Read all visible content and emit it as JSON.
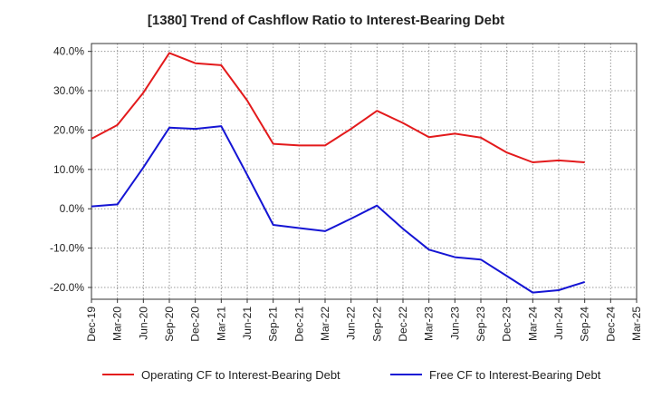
{
  "chart_data": {
    "type": "line",
    "title": "[1380]  Trend of Cashflow Ratio to Interest-Bearing Debt",
    "xlabel": "",
    "ylabel": "",
    "x": [
      "Dec-19",
      "Mar-20",
      "Jun-20",
      "Sep-20",
      "Dec-20",
      "Mar-21",
      "Jun-21",
      "Sep-21",
      "Dec-21",
      "Mar-22",
      "Jun-22",
      "Sep-22",
      "Dec-22",
      "Mar-23",
      "Jun-23",
      "Sep-23",
      "Dec-23",
      "Mar-24",
      "Jun-24",
      "Sep-24",
      "Dec-24",
      "Mar-25"
    ],
    "ylim": [
      -23,
      42
    ],
    "yticks": [
      40,
      30,
      20,
      10,
      0,
      -10,
      -20
    ],
    "ytick_labels": [
      "40.0%",
      "30.0%",
      "20.0%",
      "10.0%",
      "0.0%",
      "-10.0%",
      "-20.0%"
    ],
    "grid": true,
    "legend_position": "bottom",
    "series": [
      {
        "name": "Operating CF to Interest-Bearing Debt",
        "color": "#e31a1c",
        "values": [
          17.8,
          21.3,
          29.5,
          39.6,
          37.0,
          36.5,
          27.5,
          16.5,
          16.1,
          16.1,
          20.3,
          24.9,
          21.8,
          18.2,
          19.1,
          18.1,
          14.3,
          11.8,
          12.3,
          11.8,
          null,
          null
        ]
      },
      {
        "name": "Free CF to Interest-Bearing Debt",
        "color": "#1515d4",
        "values": [
          0.6,
          1.1,
          10.5,
          20.6,
          20.3,
          21.0,
          8.6,
          -4.1,
          -4.9,
          -5.7,
          -2.5,
          0.8,
          -5.1,
          -10.4,
          -12.3,
          -12.9,
          -17.1,
          -21.3,
          -20.7,
          -18.6,
          null,
          null
        ]
      }
    ]
  }
}
